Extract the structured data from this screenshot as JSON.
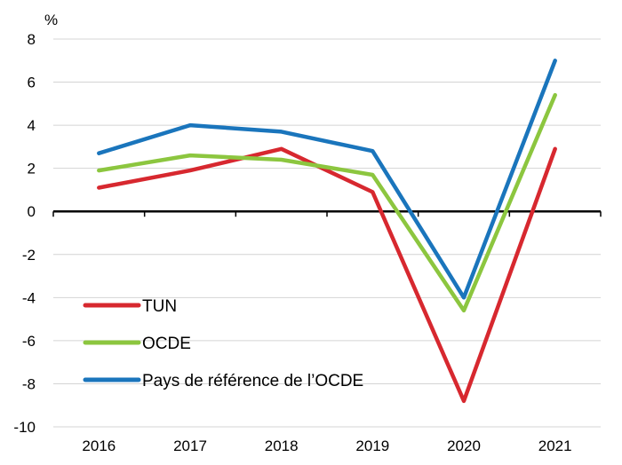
{
  "chart_data": {
    "type": "line",
    "ylabel": "%",
    "ylim": [
      -10,
      8
    ],
    "yticks": [
      8,
      6,
      4,
      2,
      0,
      -2,
      -4,
      -6,
      -8,
      -10
    ],
    "categories": [
      "2016",
      "2017",
      "2018",
      "2019",
      "2020",
      "2021"
    ],
    "grid": true,
    "legend_position": "bottom-left",
    "series": [
      {
        "name": "TUN",
        "color": "#d7282f",
        "values": [
          1.1,
          1.9,
          2.9,
          0.9,
          -8.8,
          2.9
        ]
      },
      {
        "name": "OCDE",
        "color": "#8cc63f",
        "values": [
          1.9,
          2.6,
          2.4,
          1.7,
          -4.6,
          5.4
        ]
      },
      {
        "name": "Pays de référence de l’OCDE",
        "color": "#1a75bc",
        "values": [
          2.7,
          4.0,
          3.7,
          2.8,
          -4.0,
          7.0
        ]
      }
    ]
  }
}
